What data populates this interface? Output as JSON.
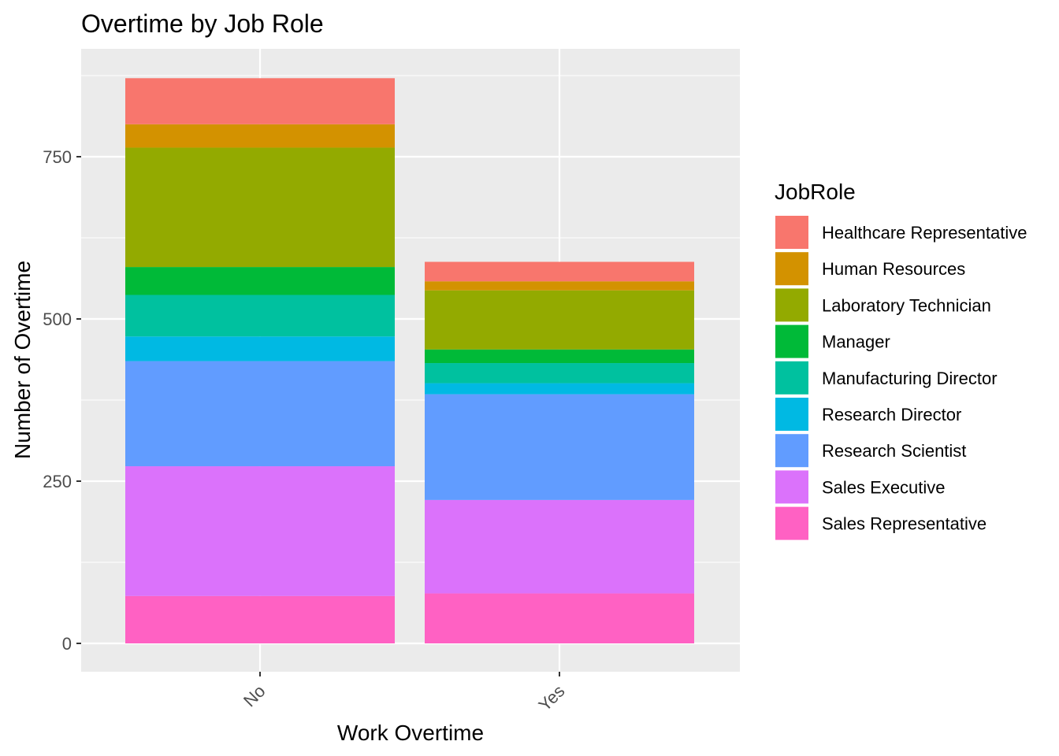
{
  "chart_data": {
    "type": "bar",
    "stacked": true,
    "title": "Overtime by Job Role",
    "xlabel": "Work Overtime",
    "ylabel": "Number of Overtime",
    "categories": [
      "No",
      "Yes"
    ],
    "ylim": [
      0,
      875
    ],
    "yticks": [
      0,
      250,
      500,
      750
    ],
    "grid": true,
    "legend": {
      "title": "JobRole",
      "position": "right"
    },
    "series": [
      {
        "name": "Healthcare Representative",
        "color": "#F8766D",
        "values": [
          71,
          30
        ]
      },
      {
        "name": "Human Resources",
        "color": "#D39200",
        "values": [
          36,
          14
        ]
      },
      {
        "name": "Laboratory Technician",
        "color": "#93AA00",
        "values": [
          184,
          91
        ]
      },
      {
        "name": "Manager",
        "color": "#00BA38",
        "values": [
          43,
          21
        ]
      },
      {
        "name": "Manufacturing Director",
        "color": "#00C19F",
        "values": [
          64,
          31
        ]
      },
      {
        "name": "Research Director",
        "color": "#00B9E3",
        "values": [
          38,
          17
        ]
      },
      {
        "name": "Research Scientist",
        "color": "#619CFF",
        "values": [
          162,
          163
        ]
      },
      {
        "name": "Sales Executive",
        "color": "#DB72FB",
        "values": [
          200,
          144
        ]
      },
      {
        "name": "Sales Representative",
        "color": "#FF61C3",
        "values": [
          73,
          77
        ]
      }
    ]
  }
}
